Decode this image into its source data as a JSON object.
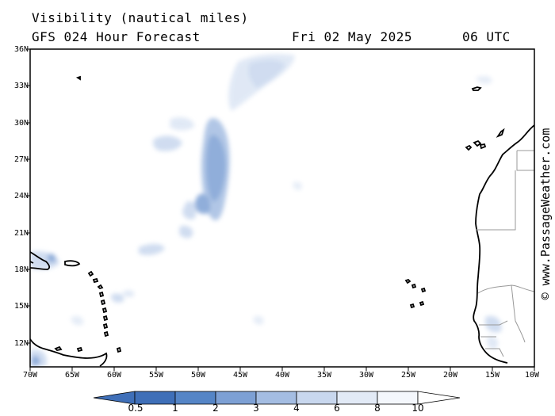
{
  "header": {
    "title": "Visibility (nautical miles)",
    "subtitle": "GFS 024 Hour Forecast",
    "date": "Fri 02 May 2025",
    "time": "06 UTC"
  },
  "credit": "© www.PassageWeather.com",
  "map": {
    "lat_labels": [
      "36N",
      "33N",
      "30N",
      "27N",
      "24N",
      "21N",
      "18N",
      "15N",
      "12N"
    ],
    "lon_labels": [
      "70W",
      "65W",
      "60W",
      "55W",
      "50W",
      "45W",
      "40W",
      "35W",
      "30W",
      "25W",
      "20W",
      "15W",
      "10W"
    ],
    "land_color": "#ffffff",
    "coast_color": "#000000",
    "border_color": "#999999"
  },
  "colorbar": {
    "labels": [
      "0.5",
      "1",
      "2",
      "3",
      "4",
      "6",
      "8",
      "10"
    ],
    "colors": [
      "#3f6fb8",
      "#5585c6",
      "#7da0d4",
      "#a4bde2",
      "#c8d7ee",
      "#e2eaf6",
      "#f4f7fc",
      "#ffffff"
    ]
  }
}
